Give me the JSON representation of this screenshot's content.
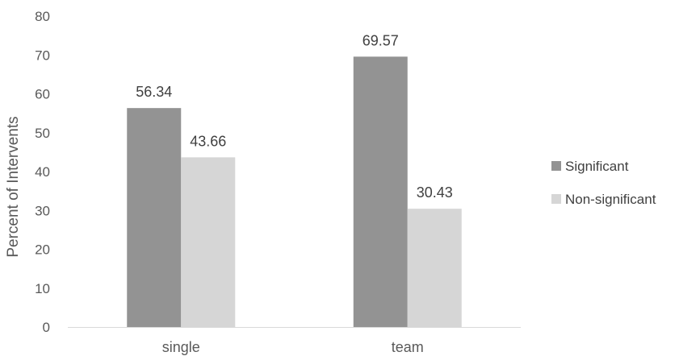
{
  "chart_data": {
    "type": "bar",
    "categories": [
      "single",
      "team"
    ],
    "series": [
      {
        "name": "Significant",
        "values": [
          56.34,
          69.57
        ],
        "color": "#939393"
      },
      {
        "name": "Non-significant",
        "values": [
          43.66,
          30.43
        ],
        "color": "#d6d6d6"
      }
    ],
    "data_labels": [
      [
        "56.34",
        "69.57"
      ],
      [
        "43.66",
        "30.43"
      ]
    ],
    "ylabel": "Percent of Intervents",
    "xlabel": "",
    "ylim": [
      0,
      80
    ],
    "yticks": [
      0,
      10,
      20,
      30,
      40,
      50,
      60,
      70,
      80
    ],
    "grid": false,
    "legend_position": "right"
  }
}
